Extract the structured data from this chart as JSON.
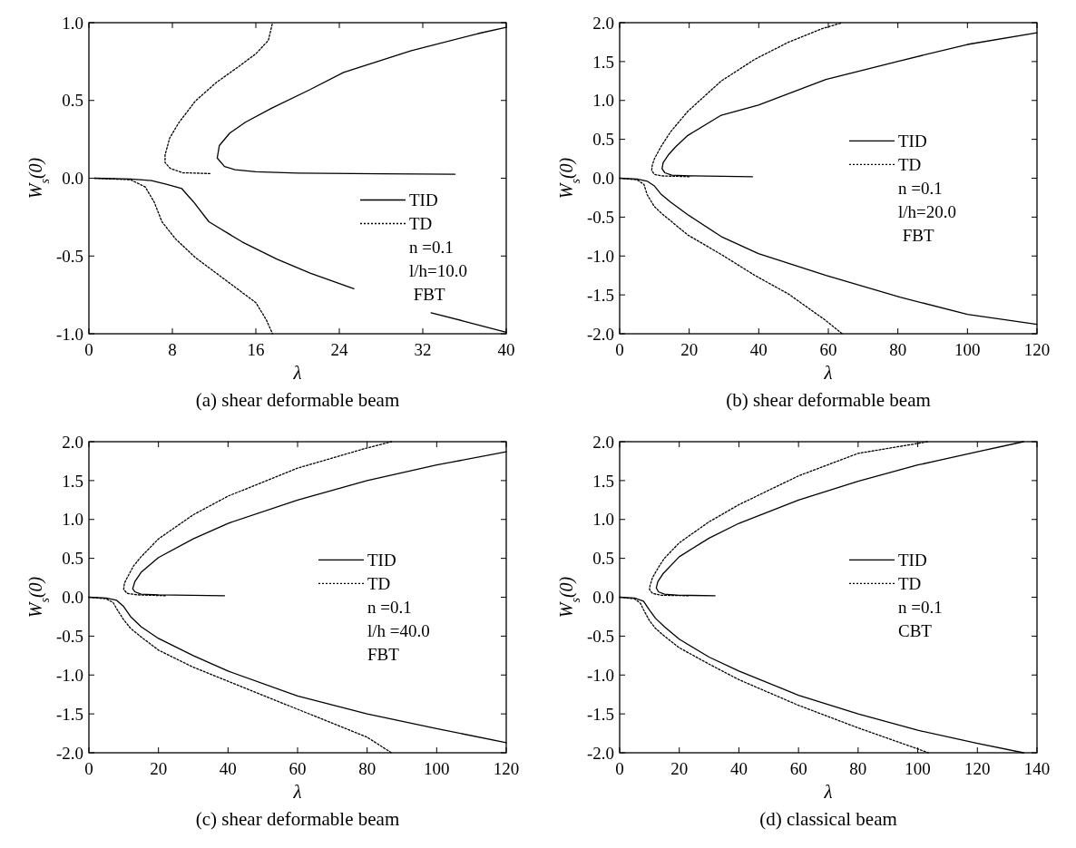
{
  "chart_data": [
    {
      "type": "line",
      "title": "(a) shear deformable beam",
      "xlabel": "λ",
      "ylabel": "W$_{s}$(0)",
      "xlim": [
        0,
        40
      ],
      "ylim": [
        -1,
        1
      ],
      "xticks": [
        0,
        8,
        16,
        24,
        32,
        40
      ],
      "yticks": [
        {
          "value": -1,
          "label": "-1.0"
        },
        -0.5,
        {
          "value": 0,
          "label": "0.0"
        },
        0.5,
        {
          "value": 1,
          "label": "1.0"
        }
      ],
      "legend": "bottom right",
      "grid": false,
      "annotations": [
        "n =0.1",
        "l/h=10.0",
        " FBT"
      ],
      "series": [
        {
          "name": "TID",
          "color": "#000000",
          "line_style": "solid",
          "x": [
            0.55,
            4,
            6,
            7.5,
            8.9,
            10,
            11.5,
            14.7,
            18,
            21.2,
            25.4,
            null,
            32.8,
            36,
            40,
            null,
            35.1,
            28,
            20,
            16,
            14,
            13,
            12.3,
            12.5,
            13.5,
            15,
            17.5,
            21.2,
            24.4,
            30.9,
            37.3,
            40
          ],
          "values": [
            0,
            -0.005,
            -0.015,
            -0.04,
            -0.067,
            -0.15,
            -0.28,
            -0.41,
            -0.52,
            -0.61,
            -0.71,
            null,
            -0.865,
            -0.92,
            -0.99,
            null,
            0.026,
            0.028,
            0.033,
            0.041,
            0.055,
            0.075,
            0.13,
            0.21,
            0.29,
            0.36,
            0.45,
            0.57,
            0.68,
            0.82,
            0.93,
            0.97
          ]
        },
        {
          "name": "TD",
          "color": "#000000",
          "line_style": "dotted",
          "x": [
            0.55,
            4,
            5.4,
            6.26,
            7,
            8.3,
            10.2,
            12.2,
            14.4,
            16,
            17,
            17.6,
            null,
            11.6,
            9,
            7.8,
            7.3,
            7.3,
            7.74,
            8.6,
            10.2,
            12.2,
            14.4,
            16,
            17.2,
            17.6
          ],
          "values": [
            0,
            -0.01,
            -0.056,
            -0.154,
            -0.28,
            -0.39,
            -0.51,
            -0.61,
            -0.72,
            -0.8,
            -0.91,
            -1,
            null,
            0.03,
            0.035,
            0.063,
            0.1,
            0.15,
            0.258,
            0.355,
            0.496,
            0.615,
            0.72,
            0.8,
            0.886,
            1
          ]
        }
      ]
    },
    {
      "type": "line",
      "title": "(b) shear deformable beam",
      "xlabel": "λ",
      "ylabel": "W$_{s}$(0)",
      "xlim": [
        0,
        120
      ],
      "ylim": [
        -2,
        2
      ],
      "xticks": [
        0,
        20,
        40,
        60,
        80,
        100,
        120
      ],
      "yticks": [
        {
          "value": -2,
          "label": "-2.0"
        },
        -1.5,
        {
          "value": -1,
          "label": "-1.0"
        },
        -0.5,
        {
          "value": 0,
          "label": "0.0"
        },
        0.5,
        {
          "value": 1,
          "label": "1.0"
        },
        1.5,
        {
          "value": 2,
          "label": "2.0"
        }
      ],
      "legend": "right",
      "grid": false,
      "annotations": [
        "n =0.1",
        "l/h=20.0",
        " FBT"
      ],
      "series": [
        {
          "name": "TID",
          "color": "#000000",
          "line_style": "solid",
          "x": [
            0,
            5,
            8,
            10,
            11.8,
            14.7,
            19.6,
            29.2,
            39.9,
            59.3,
            80.6,
            100,
            120,
            null,
            38.2,
            20,
            15,
            13,
            12.2,
            12.5,
            14,
            16,
            19.6,
            29.2,
            39.9,
            59.3,
            80.6,
            100,
            120
          ],
          "values": [
            0,
            -0.01,
            -0.04,
            -0.1,
            -0.2,
            -0.31,
            -0.47,
            -0.75,
            -0.97,
            -1.25,
            -1.53,
            -1.75,
            -1.88,
            null,
            0.02,
            0.03,
            0.04,
            0.07,
            0.12,
            0.2,
            0.3,
            0.4,
            0.55,
            0.81,
            0.94,
            1.27,
            1.51,
            1.72,
            1.87
          ]
        },
        {
          "name": "TD",
          "color": "#000000",
          "line_style": "dotted",
          "x": [
            0,
            5,
            7,
            7.9,
            9.9,
            12,
            14.7,
            19.6,
            29.2,
            38.9,
            48.6,
            59.3,
            64,
            null,
            20,
            12,
            10,
            9.2,
            9.4,
            10,
            11.8,
            14.7,
            19.6,
            29.2,
            38.9,
            48.6,
            58,
            64
          ],
          "values": [
            0,
            -0.02,
            -0.08,
            -0.21,
            -0.36,
            -0.45,
            -0.55,
            -0.73,
            -0.98,
            -1.25,
            -1.49,
            -1.83,
            -2,
            null,
            0.02,
            0.03,
            0.05,
            0.1,
            0.17,
            0.25,
            0.4,
            0.6,
            0.86,
            1.25,
            1.53,
            1.75,
            1.92,
            2
          ]
        }
      ]
    },
    {
      "type": "line",
      "title": "(c) shear deformable beam",
      "xlabel": "λ",
      "ylabel": "W$_{s}$(0)",
      "xlim": [
        0,
        120
      ],
      "ylim": [
        -2,
        2
      ],
      "xticks": [
        0,
        20,
        40,
        60,
        80,
        100,
        120
      ],
      "yticks": [
        {
          "value": -2,
          "label": "-2.0"
        },
        -1.5,
        {
          "value": -1,
          "label": "-1.0"
        },
        -0.5,
        {
          "value": 0,
          "label": "0.0"
        },
        0.5,
        {
          "value": 1,
          "label": "1.0"
        },
        1.5,
        {
          "value": 2,
          "label": "2.0"
        }
      ],
      "legend": "right",
      "grid": false,
      "annotations": [
        "n =0.1",
        "l/h =40.0",
        "FBT"
      ],
      "series": [
        {
          "name": "TID",
          "color": "#000000",
          "line_style": "solid",
          "x": [
            0,
            5,
            8,
            10,
            12,
            15,
            20,
            30,
            40,
            60,
            80,
            100,
            120,
            null,
            39,
            20,
            15,
            13.2,
            12.6,
            13.2,
            15,
            20,
            30,
            40,
            60,
            80,
            100,
            120
          ],
          "values": [
            0,
            -0.01,
            -0.04,
            -0.12,
            -0.25,
            -0.38,
            -0.53,
            -0.75,
            -0.95,
            -1.27,
            -1.5,
            -1.69,
            -1.87,
            null,
            0.02,
            0.03,
            0.04,
            0.07,
            0.11,
            0.2,
            0.32,
            0.51,
            0.75,
            0.95,
            1.25,
            1.5,
            1.7,
            1.87
          ]
        },
        {
          "name": "TD",
          "color": "#000000",
          "line_style": "dotted",
          "x": [
            0,
            5,
            7,
            8,
            10,
            12,
            15,
            20,
            30,
            40,
            60,
            80,
            87,
            null,
            22,
            14,
            11,
            10,
            10.2,
            11,
            12.8,
            15,
            20,
            30,
            40,
            60,
            80,
            87
          ],
          "values": [
            0,
            -0.02,
            -0.07,
            -0.15,
            -0.29,
            -0.4,
            -0.51,
            -0.68,
            -0.9,
            -1.08,
            -1.44,
            -1.8,
            -2,
            null,
            0.02,
            0.03,
            0.05,
            0.1,
            0.18,
            0.25,
            0.4,
            0.52,
            0.75,
            1.06,
            1.3,
            1.66,
            1.92,
            2
          ]
        }
      ]
    },
    {
      "type": "line",
      "title": "(d) classical beam",
      "xlabel": "λ",
      "ylabel": "W$_{s}$(0)",
      "xlim": [
        0,
        140
      ],
      "ylim": [
        -2,
        2
      ],
      "xticks": [
        0,
        20,
        40,
        60,
        80,
        100,
        120,
        140
      ],
      "yticks": [
        {
          "value": -2,
          "label": "-2.0"
        },
        -1.5,
        {
          "value": -1,
          "label": "-1.0"
        },
        -0.5,
        {
          "value": 0,
          "label": "0.0"
        },
        0.5,
        {
          "value": 1,
          "label": "1.0"
        },
        1.5,
        {
          "value": 2,
          "label": "2.0"
        }
      ],
      "legend": "right",
      "grid": false,
      "annotations": [
        "n =0.1",
        "CBT"
      ],
      "series": [
        {
          "name": "TID",
          "color": "#000000",
          "line_style": "solid",
          "x": [
            0,
            5,
            8,
            9.9,
            12,
            15,
            20,
            30,
            40,
            60,
            80,
            100,
            120,
            135.5,
            null,
            32,
            20,
            15,
            13,
            12.3,
            12.8,
            14.5,
            20,
            30,
            40,
            60,
            80,
            100,
            120,
            135.5
          ],
          "values": [
            0,
            -0.01,
            -0.05,
            -0.16,
            -0.27,
            -0.38,
            -0.54,
            -0.77,
            -0.95,
            -1.26,
            -1.5,
            -1.71,
            -1.88,
            -2,
            null,
            0.02,
            0.025,
            0.04,
            0.07,
            0.12,
            0.2,
            0.3,
            0.52,
            0.76,
            0.95,
            1.25,
            1.49,
            1.7,
            1.87,
            2
          ]
        },
        {
          "name": "TD",
          "color": "#000000",
          "line_style": "dotted",
          "x": [
            0,
            5,
            7,
            8,
            10,
            12,
            15,
            20,
            30,
            40,
            60,
            80,
            100,
            103.5,
            null,
            23,
            14,
            11,
            10,
            10.2,
            11,
            13.1,
            15,
            20,
            30,
            40,
            60,
            80,
            103.5
          ],
          "values": [
            0,
            -0.02,
            -0.08,
            -0.16,
            -0.3,
            -0.4,
            -0.5,
            -0.65,
            -0.86,
            -1.06,
            -1.39,
            -1.68,
            -1.95,
            -2,
            null,
            0.02,
            0.025,
            0.05,
            0.1,
            0.15,
            0.25,
            0.39,
            0.5,
            0.7,
            0.97,
            1.19,
            1.56,
            1.85,
            2
          ]
        }
      ]
    }
  ]
}
